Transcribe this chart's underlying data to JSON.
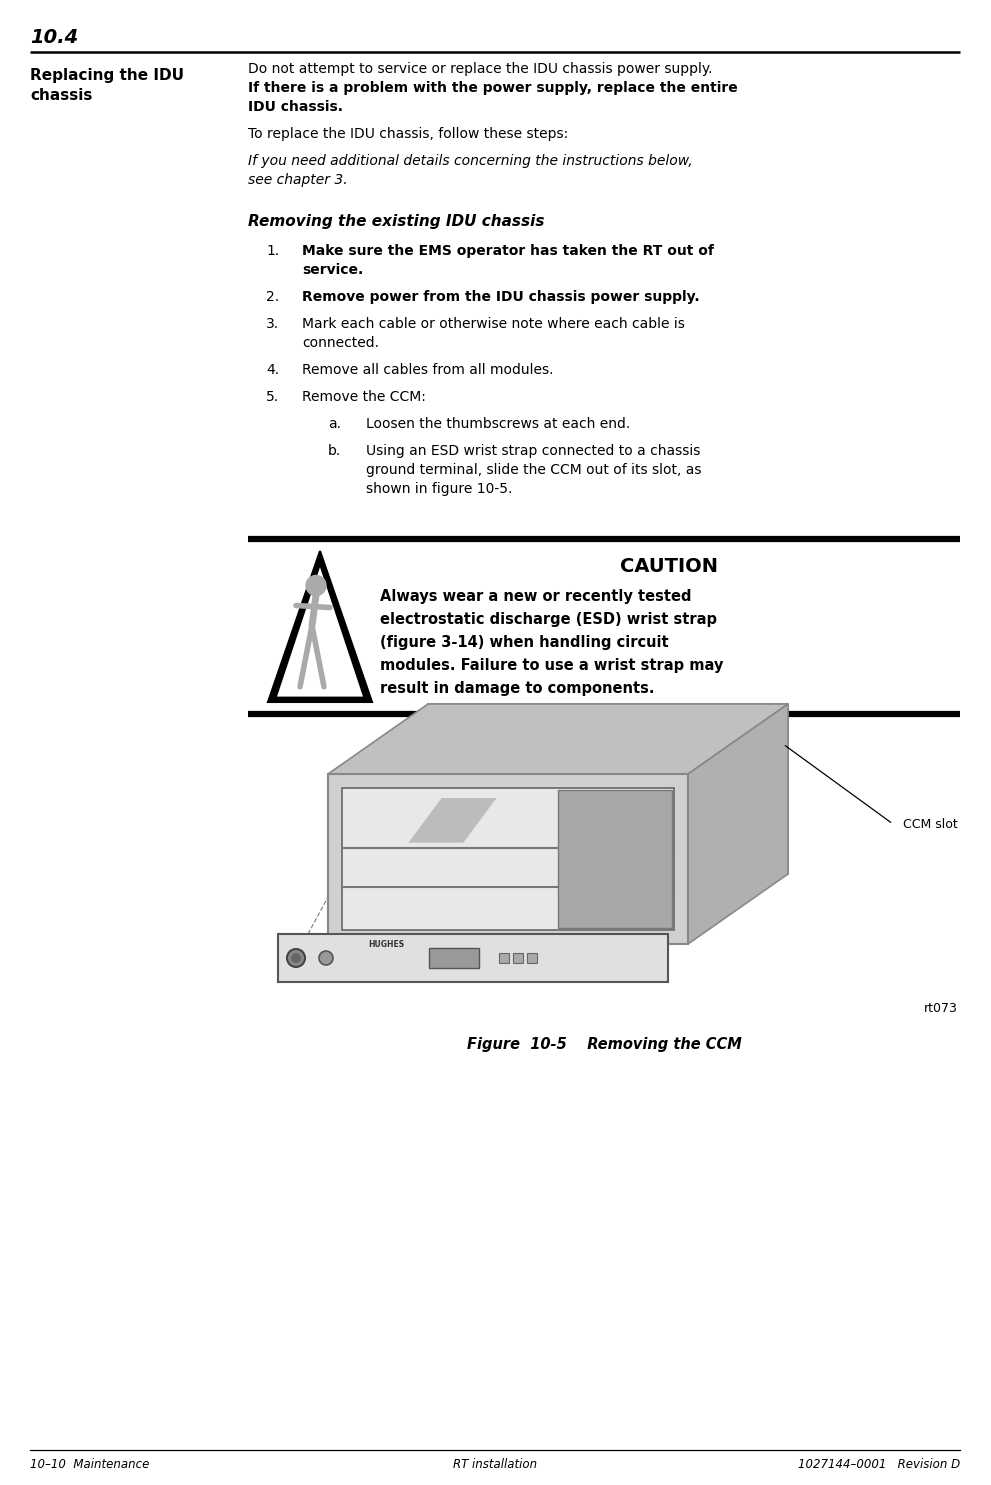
{
  "page_number": "10.4",
  "section_title": "Replacing the IDU\nchassis",
  "para1": "Do not attempt to service or replace the IDU chassis power supply.",
  "para2a": "If there is a problem with the power supply, replace the entire",
  "para2b": "IDU chassis.",
  "para3": "To replace the IDU chassis, follow these steps:",
  "italic_note": "If you need additional details concerning the instructions below,\nsee chapter 3.",
  "subsection_title": "Removing the existing IDU chassis",
  "steps": [
    {
      "num": "1.",
      "bold": true,
      "lines": [
        "Make sure the EMS operator has taken the RT out of",
        "service."
      ]
    },
    {
      "num": "2.",
      "bold": true,
      "lines": [
        "Remove power from the IDU chassis power supply."
      ]
    },
    {
      "num": "3.",
      "bold": false,
      "lines": [
        "Mark each cable or otherwise note where each cable is",
        "connected."
      ]
    },
    {
      "num": "4.",
      "bold": false,
      "lines": [
        "Remove all cables from all modules."
      ]
    },
    {
      "num": "5.",
      "bold": false,
      "lines": [
        "Remove the CCM:"
      ]
    }
  ],
  "substeps": [
    {
      "letter": "a.",
      "lines": [
        "Loosen the thumbscrews at each end."
      ]
    },
    {
      "letter": "b.",
      "lines": [
        "Using an ESD wrist strap connected to a chassis",
        "ground terminal, slide the CCM out of its slot, as",
        "shown in figure 10-5."
      ]
    }
  ],
  "caution_title": "CAUTION",
  "caution_text_lines": [
    "Always wear a new or recently tested",
    "electrostatic discharge (ESD) wrist strap",
    "(figure 3-14) when handling circuit",
    "modules. Failure to use a wrist strap may",
    "result in damage to components."
  ],
  "figure_label": "Figure  10-5    Removing the CCM",
  "ccm_slot_label": "CCM slot",
  "rt073_label": "rt073",
  "footer_left": "10–10  Maintenance",
  "footer_center": "RT installation",
  "footer_right": "1027144–0001   Revision D",
  "bg_color": "#ffffff",
  "text_color": "#000000"
}
